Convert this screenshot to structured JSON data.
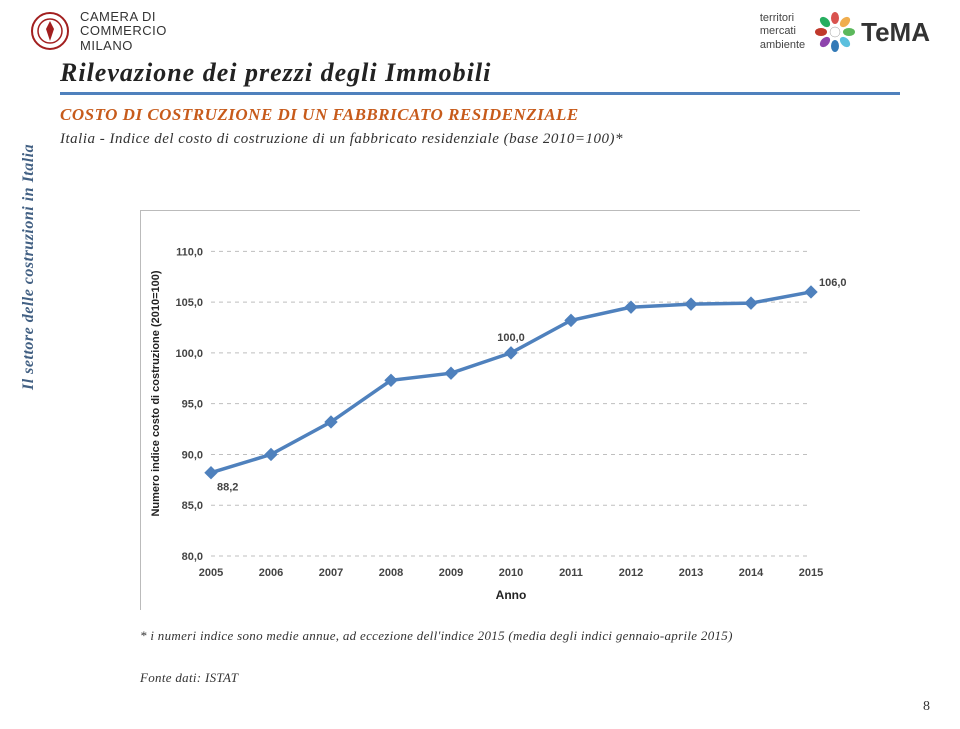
{
  "header": {
    "brand_line1": "CAMERA DI",
    "brand_line2": "COMMERCIO",
    "brand_line3": "MILANO",
    "right_words": "territori\nmercati\nambiente",
    "tema": "TeMA"
  },
  "titles": {
    "main": "Rilevazione dei prezzi degli Immobili",
    "sub": "COSTO DI COSTRUZIONE DI UN FABBRICATO RESIDENZIALE",
    "sub2": "Italia - Indice del costo di costruzione di un fabbricato residenziale (base 2010=100)*"
  },
  "side_label": "Il settore delle costruzioni in Italia",
  "chart": {
    "type": "line",
    "categories": [
      "2005",
      "2006",
      "2007",
      "2008",
      "2009",
      "2010",
      "2011",
      "2012",
      "2013",
      "2014",
      "2015"
    ],
    "values": [
      88.2,
      90.0,
      93.2,
      97.3,
      98.0,
      100.0,
      103.2,
      104.5,
      104.8,
      104.9,
      106.0
    ],
    "labeled_points": {
      "2005": "88,2",
      "2010": "100,0",
      "2015": "106,0"
    },
    "line_color": "#4f81bd",
    "line_width": 3.5,
    "marker_style": "diamond",
    "marker_color": "#4f81bd",
    "marker_size": 6,
    "ylim": [
      80,
      112
    ],
    "ytick_step": 5,
    "ytick_labels": [
      "80,0",
      "85,0",
      "90,0",
      "95,0",
      "100,0",
      "105,0",
      "110,0"
    ],
    "ylabel": "Numero indice costo di costruzione (2010=100)",
    "xlabel": "Anno",
    "label_fontsize": 11,
    "tick_fontsize": 11,
    "tick_color": "#444444",
    "axis_label_color": "#222222",
    "grid_color": "#bfbfbf",
    "grid_dash": "4 4",
    "background_color": "#ffffff",
    "plot_border_color": "#bbbbbb",
    "datalabel_color": "#444444",
    "datalabel_fontsize": 11
  },
  "footnote": "* i numeri indice sono medie annue, ad eccezione dell'indice 2015 (media degli indici gennaio-aprile 2015)",
  "source": "Fonte dati: ISTAT",
  "page": "8"
}
